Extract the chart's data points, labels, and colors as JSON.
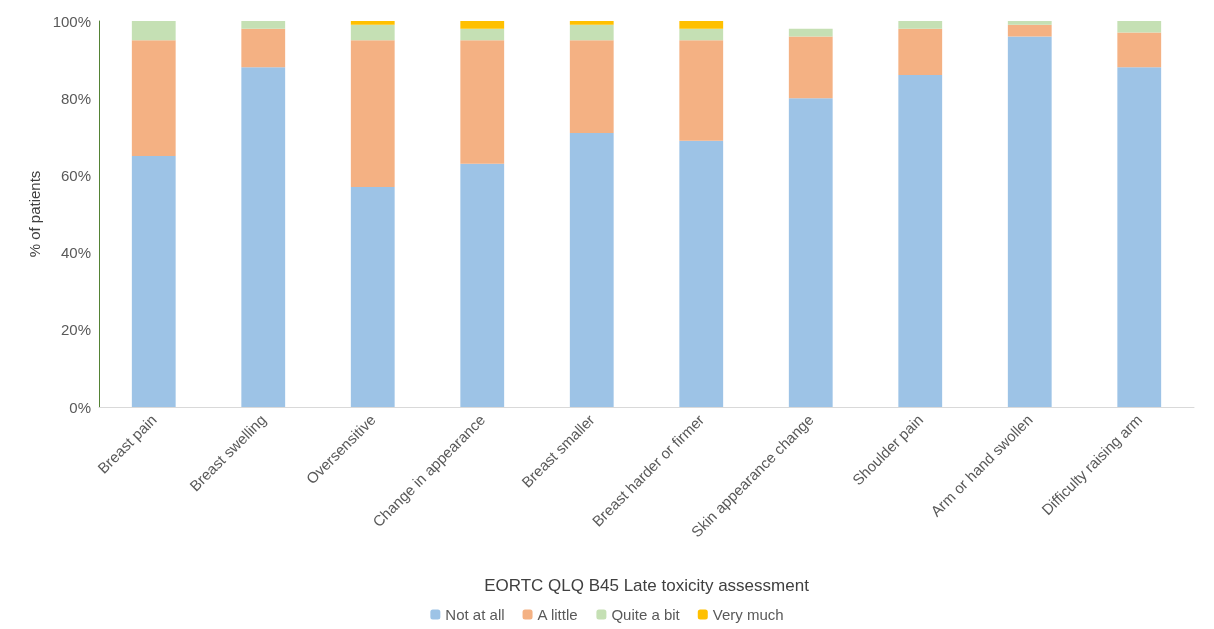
{
  "chart_data": {
    "type": "bar",
    "stacked": true,
    "xlabel": "EORTC QLQ B45 Late toxicity assessment",
    "ylabel": "% of patients",
    "categories": [
      "Breast pain",
      "Breast swelling",
      "Oversensitive",
      "Change in appearance",
      "Breast smaller",
      "Breast harder or firmer",
      "Skin appearance change",
      "Shoulder pain",
      "Arm or hand swollen",
      "Difficulty raising arm"
    ],
    "series": [
      {
        "name": "Not at all",
        "color": "#9dc3e6",
        "values": [
          65,
          88,
          57,
          63,
          71,
          69,
          80,
          86,
          96,
          88
        ]
      },
      {
        "name": "A little",
        "color": "#f4b183",
        "values": [
          30,
          10,
          38,
          32,
          24,
          26,
          16,
          12,
          3,
          9
        ]
      },
      {
        "name": "Quite a bit",
        "color": "#c5e0b4",
        "values": [
          5,
          2,
          4,
          3,
          4,
          3,
          2,
          2,
          1,
          3
        ]
      },
      {
        "name": "Very much",
        "color": "#ffc000",
        "values": [
          0,
          0,
          1,
          2,
          1,
          2,
          0,
          0,
          0,
          0
        ]
      }
    ],
    "ylim": [
      0,
      100
    ],
    "yticks": [
      {
        "value": 0,
        "label": "0%"
      },
      {
        "value": 20,
        "label": "20%"
      },
      {
        "value": 40,
        "label": "40%"
      },
      {
        "value": 60,
        "label": "60%"
      },
      {
        "value": 80,
        "label": "80%"
      },
      {
        "value": 100,
        "label": "100%"
      }
    ],
    "grid": false,
    "legend": "bottom"
  }
}
